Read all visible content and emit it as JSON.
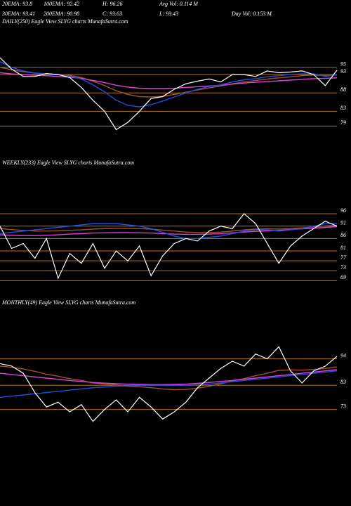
{
  "header": {
    "items": [
      "20EMA: 93.8",
      "100EMA: 92.42",
      "H: 96.26",
      "Avg Vol: 0.114  M",
      "30EMA: 93.41",
      "200EMA: 90.98",
      "C: 93.63",
      "L: 93.43",
      "Day Vol: 0.153 M"
    ]
  },
  "chart_data": [
    {
      "type": "line",
      "title": "DAILY(250) Eagle  View  SLYG charts MunafaSutra.com",
      "ylim": [
        76,
        98
      ],
      "yticks": [
        95,
        93,
        88,
        83,
        79
      ],
      "grid": true,
      "grid_color": "#b8741a",
      "series": [
        {
          "color": "#a0522d",
          "values": [
            95,
            94.3,
            93.8,
            93.4,
            93.2,
            93,
            92.8,
            92.2,
            91.2,
            90,
            88.6,
            87.6,
            87,
            86.9,
            87.1,
            87.6,
            88.2,
            88.8,
            89.4,
            89.9,
            90.5,
            91,
            91.4,
            91.8,
            92.1,
            92.4,
            92.7,
            92.9,
            92.7,
            92.9
          ]
        },
        {
          "color": "#e040e0",
          "values": [
            93.5,
            93.2,
            93,
            92.8,
            92.7,
            92.5,
            92.3,
            92,
            91.4,
            90.8,
            90.1,
            89.6,
            89.3,
            89.2,
            89.2,
            89.3,
            89.5,
            89.7,
            89.9,
            90.1,
            90.4,
            90.7,
            90.9,
            91.1,
            91.3,
            91.5,
            91.7,
            91.9,
            92,
            92.1
          ]
        },
        {
          "color": "#2050e0",
          "values": [
            96.5,
            95,
            94,
            93.4,
            93.1,
            92.9,
            92.6,
            91.8,
            90.2,
            88.3,
            86,
            84.6,
            84.2,
            84.8,
            85.8,
            86.9,
            88,
            89,
            89.8,
            90.2,
            91,
            91.6,
            91.9,
            92.4,
            92.7,
            93,
            93.2,
            93.2,
            92.5,
            93
          ]
        },
        {
          "color": "#ffffff",
          "values": [
            97.6,
            94.5,
            92.5,
            92.5,
            93.3,
            93,
            92.2,
            89.5,
            86,
            83,
            78,
            80,
            83,
            86.5,
            87,
            89,
            90.5,
            91.2,
            91.8,
            91,
            93,
            93,
            92.5,
            94,
            93.5,
            93.7,
            94,
            93,
            90,
            94.2
          ]
        }
      ]
    },
    {
      "type": "line",
      "title": "WEEKLY(233) Eagle  View  SLYG charts MunafaSutra.com",
      "ylim": [
        66,
        100
      ],
      "yticks": [
        96,
        91,
        86,
        81,
        77,
        73,
        69
      ],
      "grid": true,
      "grid_color": "#b8741a",
      "series": [
        {
          "color": "#a0522d",
          "values": [
            90,
            89.6,
            89.3,
            89,
            89,
            89.1,
            89.3,
            89.5,
            89.8,
            90,
            90.1,
            90.1,
            90,
            89.8,
            89.4,
            89,
            88.6,
            88.4,
            88.4,
            88.6,
            89,
            89.5,
            89.8,
            89.9,
            89.8,
            90,
            90.3,
            90.7,
            91.1,
            91.3
          ]
        },
        {
          "color": "#e040e0",
          "values": [
            87.5,
            87.3,
            87.2,
            87.2,
            87.3,
            87.5,
            87.8,
            88,
            88.2,
            88.3,
            88.4,
            88.4,
            88.3,
            88.2,
            88,
            87.8,
            87.7,
            87.7,
            87.8,
            88,
            88.3,
            88.6,
            88.9,
            89.1,
            89.3,
            89.6,
            89.9,
            90.2,
            90.5,
            90.8
          ]
        },
        {
          "color": "#2050e0",
          "values": [
            88,
            88.5,
            89,
            89.5,
            90,
            90.5,
            91,
            91.5,
            92,
            92,
            92,
            91.5,
            91,
            90,
            88.5,
            87,
            86,
            86,
            86.5,
            87,
            88,
            89,
            89.5,
            89.5,
            89,
            89.5,
            90,
            91,
            92,
            92
          ]
        },
        {
          "color": "#ffffff",
          "values": [
            91,
            82,
            84,
            78,
            86,
            70,
            80,
            76,
            84,
            74,
            81,
            77,
            83,
            71,
            79,
            84,
            86,
            85,
            89,
            91,
            90,
            96,
            92,
            84,
            76,
            83,
            87,
            90,
            93,
            91
          ]
        }
      ]
    },
    {
      "type": "line",
      "title": "MONTHLY(49) Eagle  View  SLYG charts MunafaSutra.com",
      "ylim": [
        65,
        100
      ],
      "yticks": [
        94,
        83,
        73
      ],
      "grid": true,
      "grid_color": "#b8741a",
      "series": [
        {
          "color": "#a0522d",
          "values": [
            91,
            90.5,
            89.8,
            88.8,
            87.6,
            86.8,
            85.8,
            85,
            84,
            83.5,
            83.2,
            82.6,
            82.4,
            82,
            81.5,
            81.2,
            81.3,
            81.8,
            82.6,
            83.6,
            84.8,
            85.8,
            87,
            88,
            89.2,
            89.4,
            89.3,
            89.6,
            90,
            90.7
          ]
        },
        {
          "color": "#e040e0",
          "values": [
            88,
            87.5,
            87,
            86.5,
            86,
            85.5,
            85,
            84.6,
            84.2,
            83.9,
            83.7,
            83.5,
            83.4,
            83.3,
            83.3,
            83.4,
            83.5,
            83.8,
            84.2,
            84.6,
            85,
            85.5,
            86,
            86.5,
            87,
            87.5,
            88,
            88.5,
            89,
            89.5
          ]
        },
        {
          "color": "#2050e0",
          "values": [
            78,
            78.5,
            79,
            79.5,
            80,
            80.5,
            81,
            81.5,
            82,
            82.3,
            82.6,
            82.8,
            83,
            83,
            83,
            83,
            83,
            83.2,
            83.5,
            84,
            84.5,
            85,
            85.5,
            86,
            86.5,
            87,
            87.5,
            88,
            88.5,
            89
          ]
        },
        {
          "color": "#ffffff",
          "values": [
            92,
            91,
            88,
            80,
            74,
            76,
            72,
            75,
            68,
            73,
            77,
            72,
            78,
            74,
            69,
            72,
            76,
            82,
            86,
            90,
            93,
            91,
            96,
            94,
            99,
            89,
            84,
            89,
            91,
            95
          ]
        }
      ]
    }
  ]
}
